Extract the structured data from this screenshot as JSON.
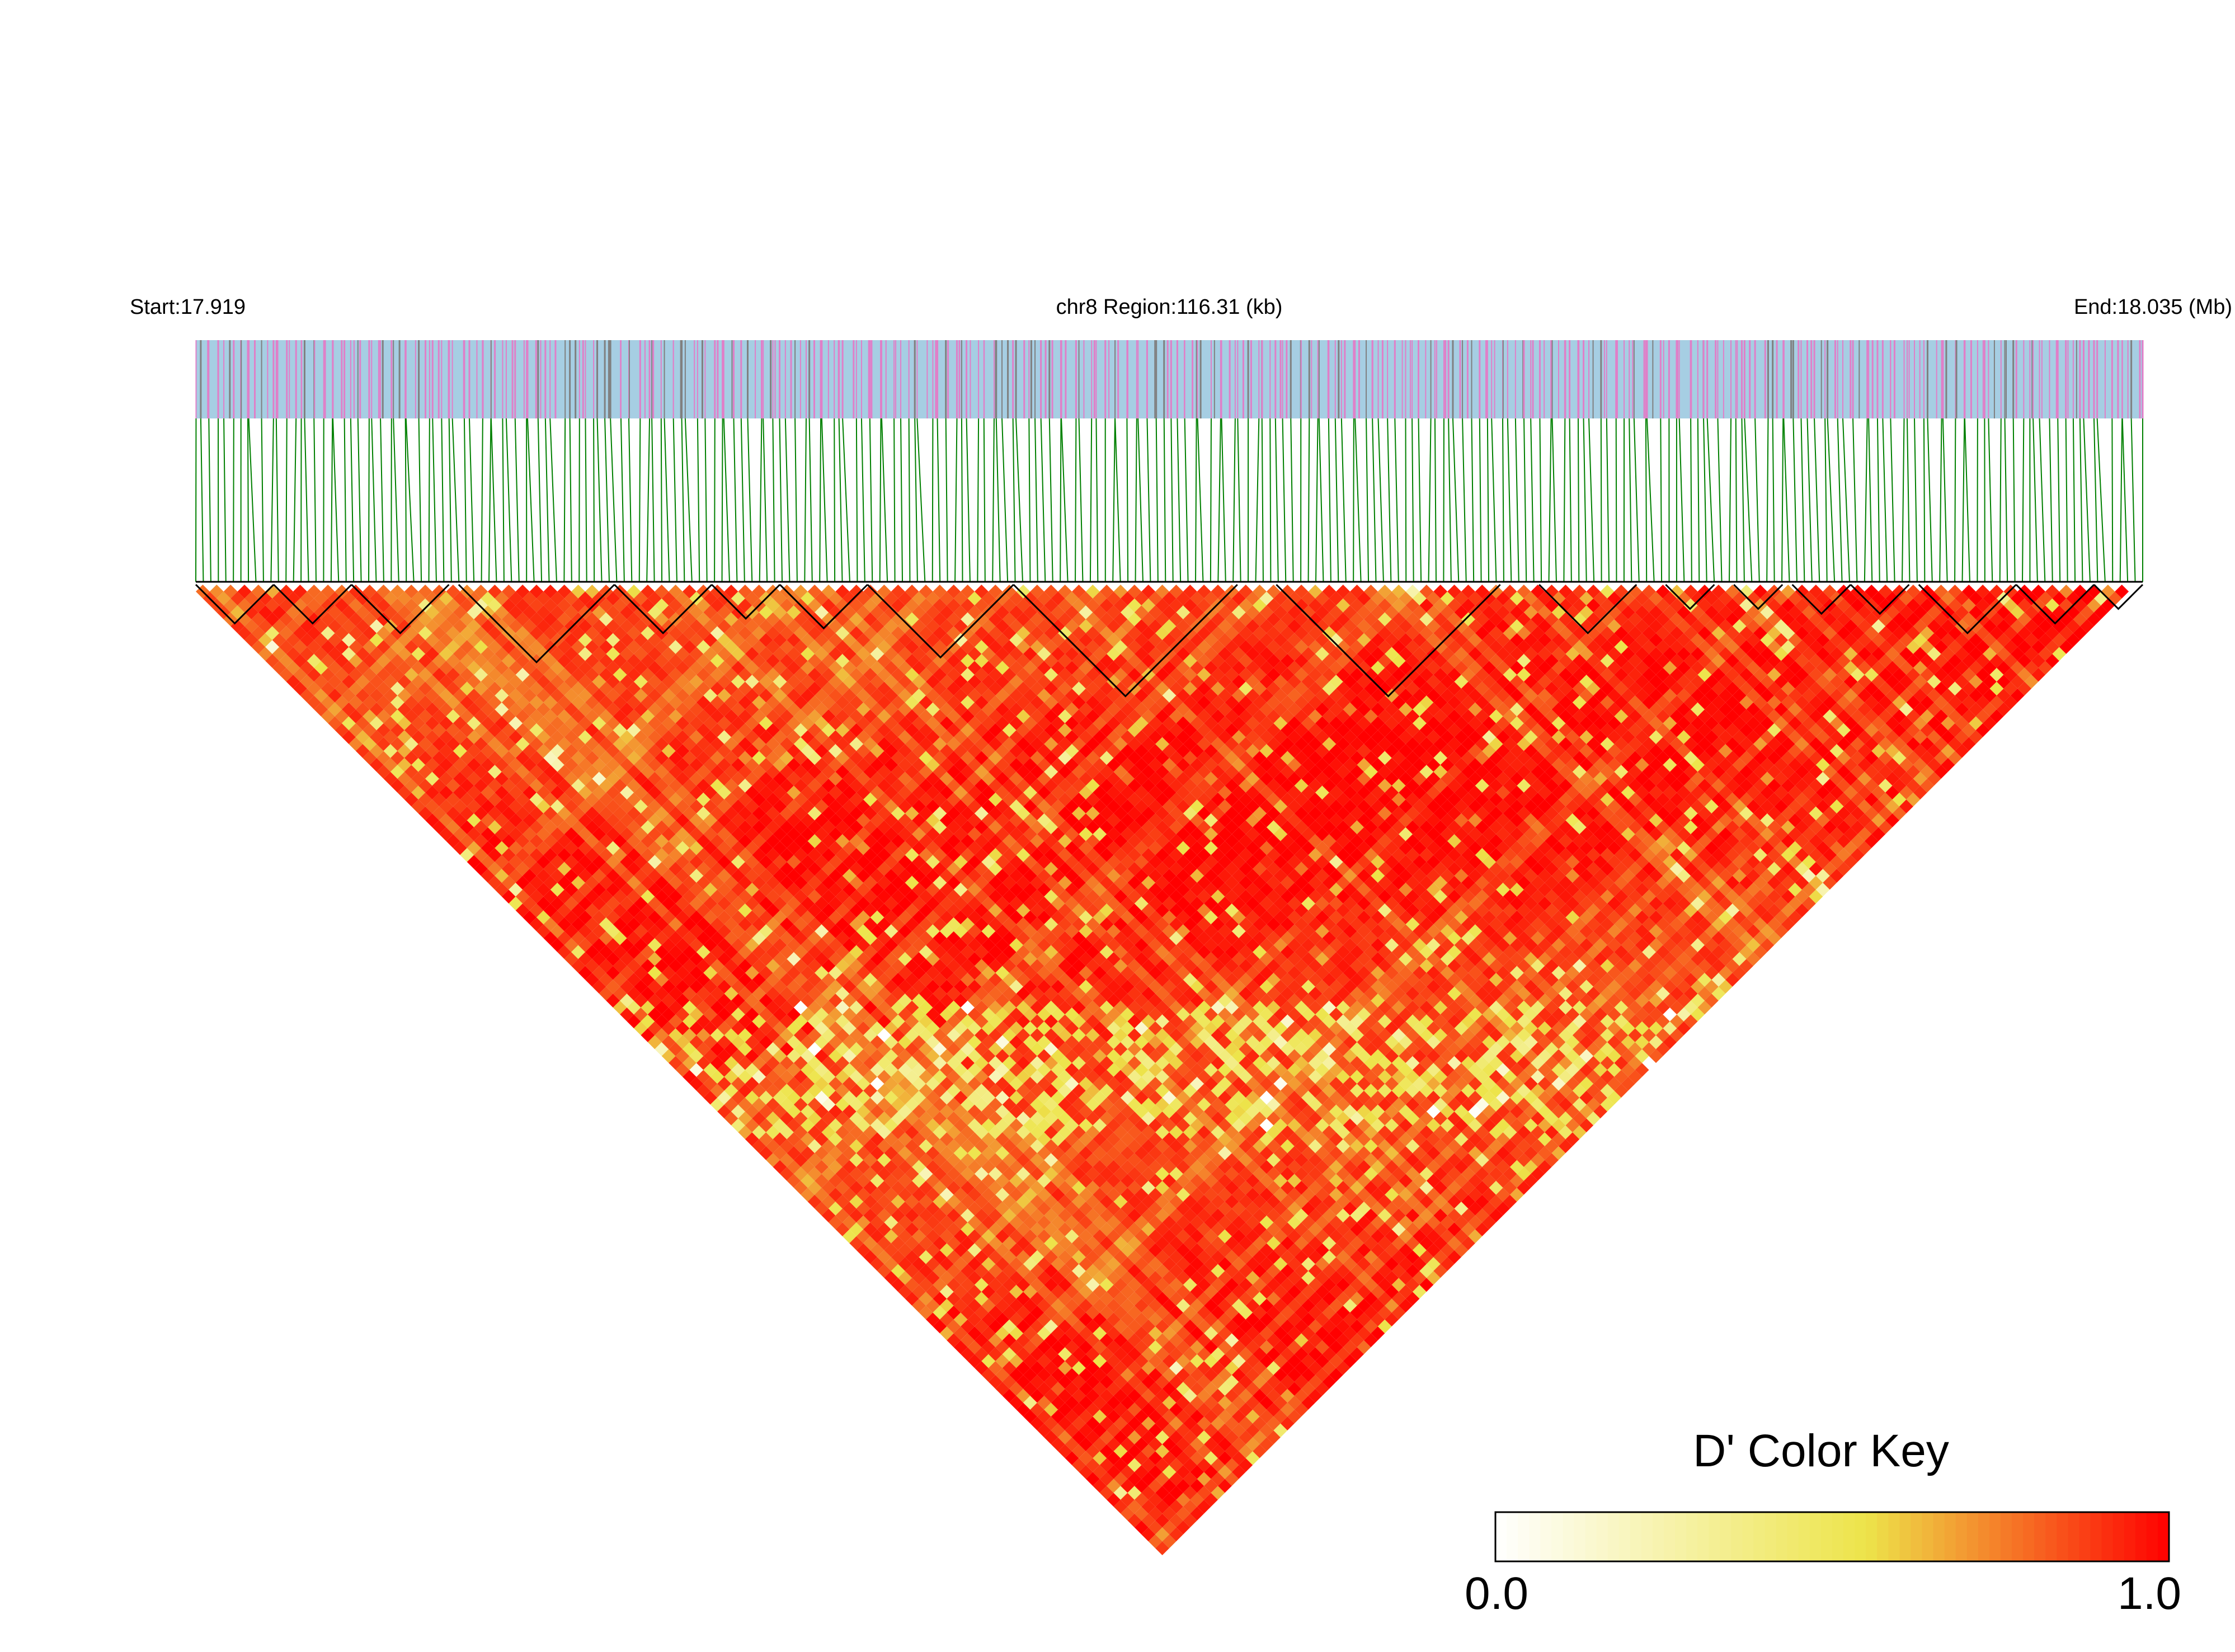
{
  "header": {
    "start_label": "Start:17.919",
    "region_label": "chr8 Region:116.31 (kb)",
    "end_label": "End:18.035 (Mb)"
  },
  "colors": {
    "snp_track_bg": "#a6cee3",
    "snp_marker_pink": "#e07fc8",
    "snp_marker_gray": "#808080",
    "connector_green": "#008000",
    "block_outline": "#000000",
    "heat_low": "#ffffff",
    "heat_mid": "#ede44a",
    "heat_high": "#ff0000"
  },
  "chart_data": {
    "type": "heatmap",
    "title": "",
    "chromosome": "chr8",
    "region_start_mb": 17.919,
    "region_end_mb": 18.035,
    "region_length_kb": 116.31,
    "measure": "D'",
    "color_key": {
      "title": "D' Color Key",
      "min_label": "0.0",
      "max_label": "1.0",
      "min": 0.0,
      "max": 1.0
    },
    "haplotype_blocks": [
      {
        "start_frac": 0.0,
        "end_frac": 0.04
      },
      {
        "start_frac": 0.04,
        "end_frac": 0.08
      },
      {
        "start_frac": 0.08,
        "end_frac": 0.13
      },
      {
        "start_frac": 0.135,
        "end_frac": 0.215
      },
      {
        "start_frac": 0.215,
        "end_frac": 0.265
      },
      {
        "start_frac": 0.265,
        "end_frac": 0.3
      },
      {
        "start_frac": 0.3,
        "end_frac": 0.345
      },
      {
        "start_frac": 0.345,
        "end_frac": 0.42
      },
      {
        "start_frac": 0.42,
        "end_frac": 0.535
      },
      {
        "start_frac": 0.555,
        "end_frac": 0.67
      },
      {
        "start_frac": 0.69,
        "end_frac": 0.74
      },
      {
        "start_frac": 0.755,
        "end_frac": 0.78
      },
      {
        "start_frac": 0.79,
        "end_frac": 0.815
      },
      {
        "start_frac": 0.82,
        "end_frac": 0.85
      },
      {
        "start_frac": 0.85,
        "end_frac": 0.88
      },
      {
        "start_frac": 0.885,
        "end_frac": 0.935
      },
      {
        "start_frac": 0.935,
        "end_frac": 0.975
      },
      {
        "start_frac": 0.975,
        "end_frac": 1.0
      }
    ]
  }
}
